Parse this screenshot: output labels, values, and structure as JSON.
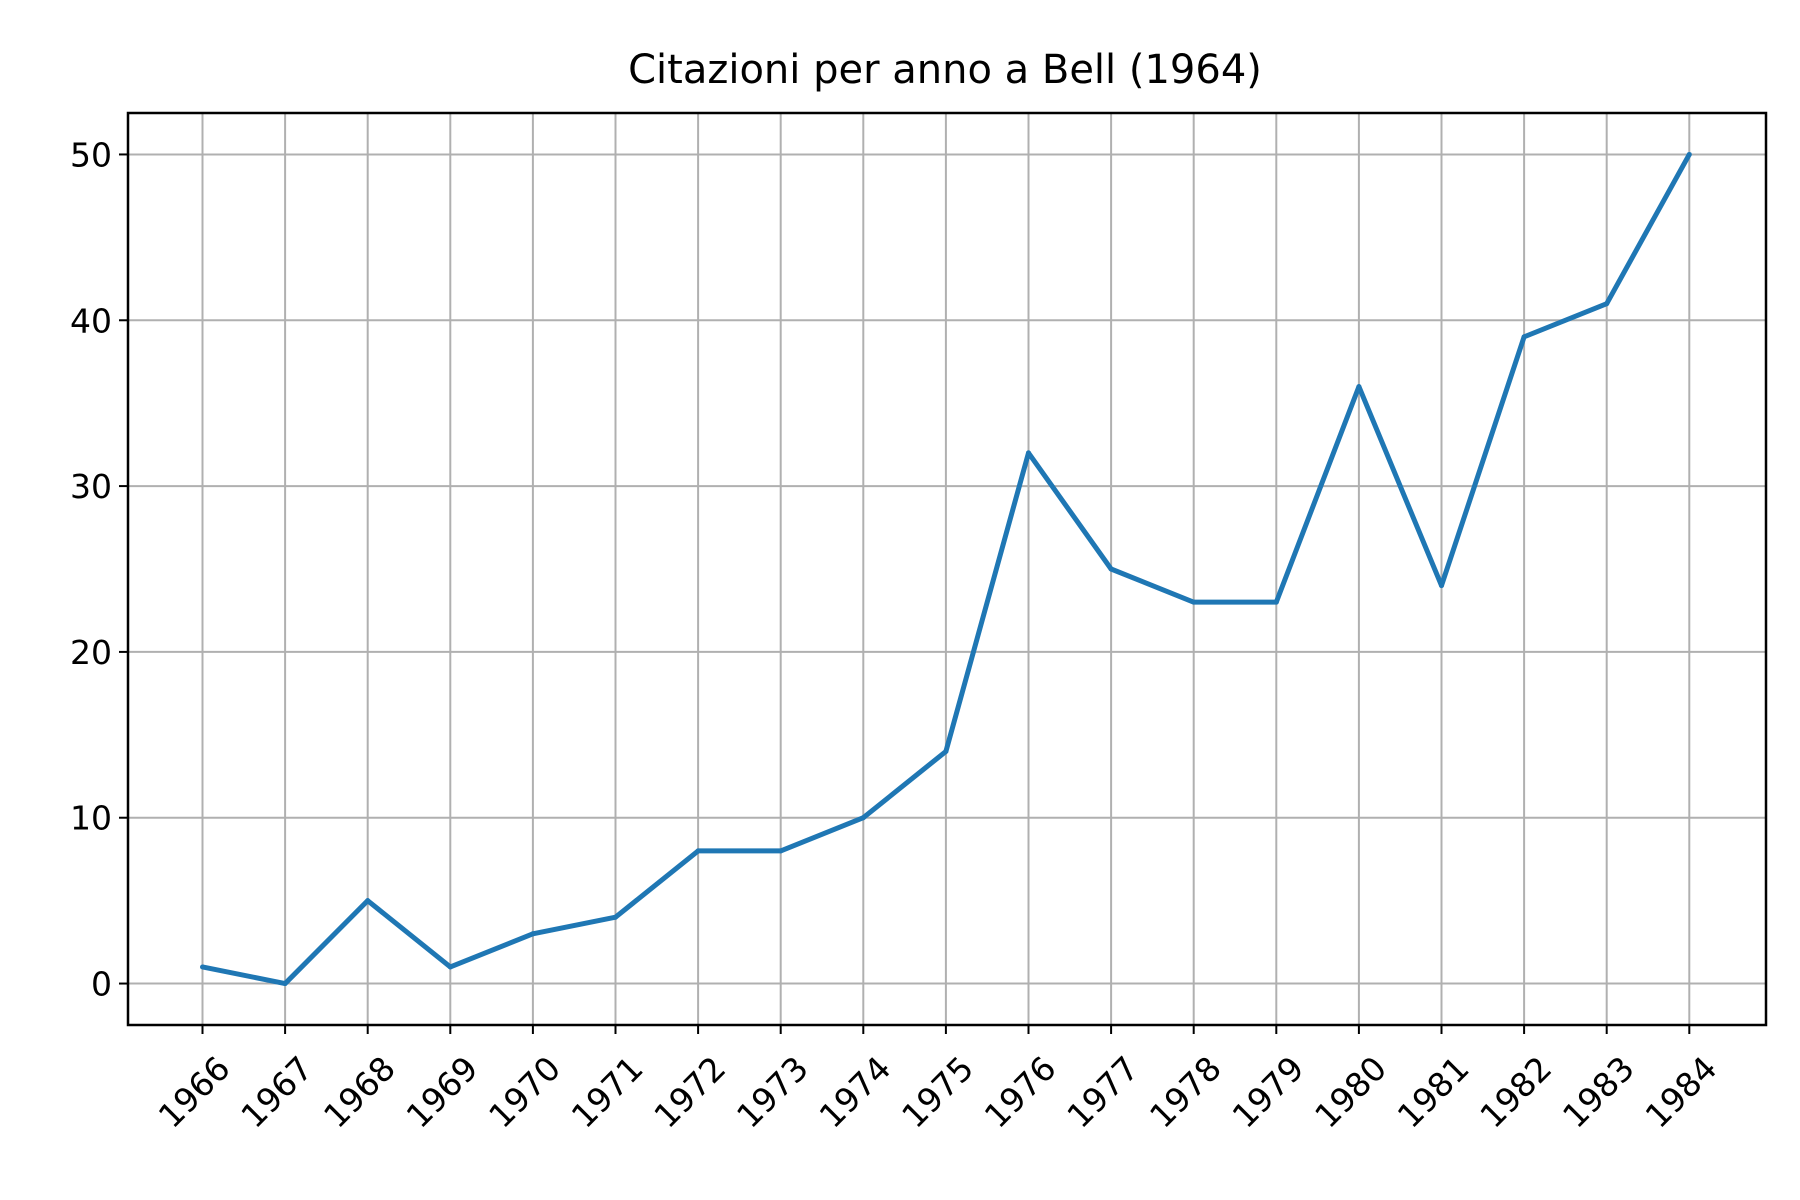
{
  "chart_data": {
    "type": "line",
    "title": "Citazioni per anno a Bell (1964)",
    "xlabel": "",
    "ylabel": "",
    "x": [
      "1966",
      "1967",
      "1968",
      "1969",
      "1970",
      "1971",
      "1972",
      "1973",
      "1974",
      "1975",
      "1976",
      "1977",
      "1978",
      "1979",
      "1980",
      "1981",
      "1982",
      "1983",
      "1984"
    ],
    "series": [
      {
        "color": "#1f77b4",
        "values": [
          1,
          0,
          5,
          1,
          3,
          4,
          8,
          8,
          10,
          14,
          32,
          25,
          23,
          23,
          36,
          24,
          39,
          41,
          50
        ]
      }
    ],
    "y_ticks": [
      0,
      10,
      20,
      30,
      40,
      50
    ],
    "ylim": [
      -2.5,
      52.5
    ],
    "x_tick_rotation_deg": 45,
    "grid": true,
    "legend": "none"
  }
}
